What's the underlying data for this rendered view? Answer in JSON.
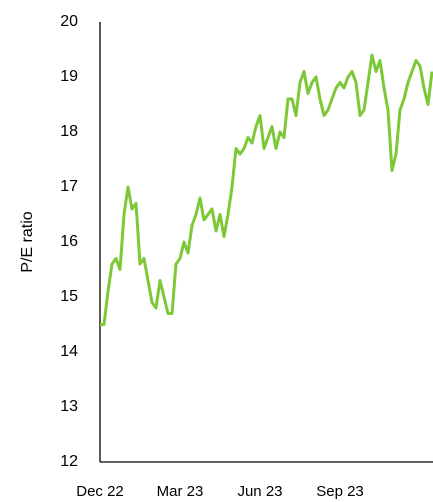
{
  "chart_data": {
    "type": "line",
    "y_label": "P/E ratio",
    "categories": [
      "Dec 22",
      null,
      null,
      null,
      null,
      null,
      null,
      null,
      null,
      null,
      null,
      null,
      null,
      null,
      null,
      null,
      null,
      null,
      null,
      null,
      "Mar 23",
      null,
      null,
      null,
      null,
      null,
      null,
      null,
      null,
      null,
      null,
      null,
      null,
      null,
      null,
      null,
      null,
      null,
      null,
      null,
      "Jun 23",
      null,
      null,
      null,
      null,
      null,
      null,
      null,
      null,
      null,
      null,
      null,
      null,
      null,
      null,
      null,
      null,
      null,
      null,
      null,
      "Sep 23",
      null,
      null,
      null,
      null,
      null,
      null,
      null,
      null,
      null,
      null,
      null,
      null,
      null,
      null,
      null,
      null,
      null,
      null,
      null,
      null,
      null,
      null,
      null
    ],
    "values": [
      14.5,
      14.5,
      15.1,
      15.6,
      15.7,
      15.5,
      16.5,
      17.0,
      16.6,
      16.7,
      15.6,
      15.7,
      15.3,
      14.9,
      14.8,
      15.3,
      15.0,
      14.7,
      14.7,
      15.6,
      15.7,
      16.0,
      15.8,
      16.3,
      16.5,
      16.8,
      16.4,
      16.5,
      16.6,
      16.2,
      16.5,
      16.1,
      16.5,
      17.0,
      17.7,
      17.6,
      17.7,
      17.9,
      17.8,
      18.1,
      18.3,
      17.7,
      17.9,
      18.1,
      17.7,
      18.0,
      17.9,
      18.6,
      18.6,
      18.3,
      18.9,
      19.1,
      18.7,
      18.9,
      19.0,
      18.6,
      18.3,
      18.4,
      18.6,
      18.8,
      18.9,
      18.8,
      19.0,
      19.1,
      18.9,
      18.3,
      18.4,
      18.9,
      19.4,
      19.1,
      19.3,
      18.8,
      18.4,
      17.3,
      17.6,
      18.4,
      18.6,
      18.9,
      19.1,
      19.3,
      19.2,
      18.8,
      18.5,
      19.1
    ],
    "color": "#7dc836",
    "ylim": [
      12,
      20
    ],
    "yticks": [
      12,
      13,
      14,
      15,
      16,
      17,
      18,
      19,
      20
    ],
    "grid": false
  }
}
